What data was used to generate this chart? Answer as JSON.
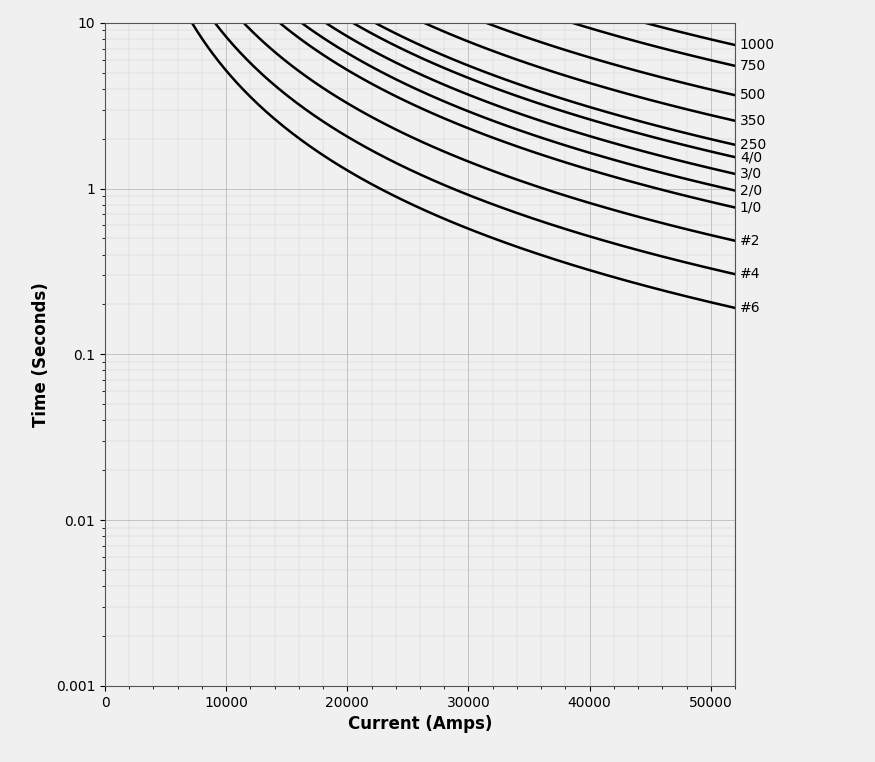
{
  "xlabel": "Current (Amps)",
  "ylabel": "Time (Seconds)",
  "xlim": [
    0,
    52000
  ],
  "ylim_log": [
    0.001,
    10
  ],
  "xticks": [
    0,
    10000,
    20000,
    30000,
    40000,
    50000
  ],
  "xticklabels": [
    "0",
    "10000",
    "20000",
    "30000",
    "40000",
    "50000"
  ],
  "wire_sizes": [
    {
      "label": "1000",
      "K": 141000
    },
    {
      "label": "750",
      "K": 122000
    },
    {
      "label": "500",
      "K": 99500
    },
    {
      "label": "350",
      "K": 83300
    },
    {
      "label": "250",
      "K": 70500
    },
    {
      "label": "4/0",
      "K": 64700
    },
    {
      "label": "3/0",
      "K": 57600
    },
    {
      "label": "2/0",
      "K": 51300
    },
    {
      "label": "1/0",
      "K": 45600
    },
    {
      "label": "#2",
      "K": 36200
    },
    {
      "label": "#4",
      "K": 28700
    },
    {
      "label": "#6",
      "K": 22700
    }
  ],
  "I_min": 100,
  "I_max": 52000,
  "n_points": 500,
  "line_color": "#000000",
  "line_width": 1.8,
  "grid_major_color": "#bbbbbb",
  "grid_minor_color": "#cccccc",
  "bg_color": "#f0f0f0",
  "label_fontsize": 12,
  "tick_fontsize": 10,
  "annotation_fontsize": 10
}
